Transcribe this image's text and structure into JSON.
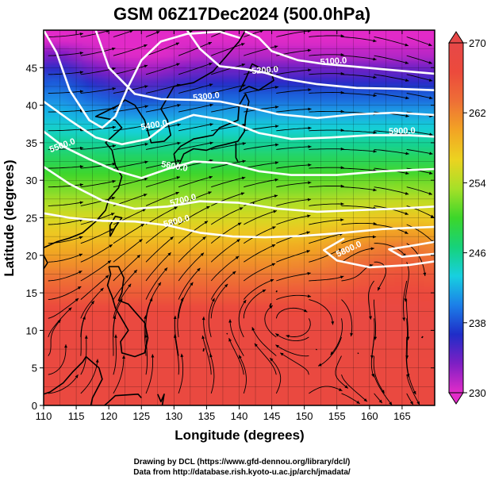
{
  "title": "GSM 06Z17Dec2024 (500.0hPa)",
  "x_axis": {
    "label": "Longitude (degrees)",
    "range": [
      110,
      170
    ],
    "ticks": [
      110,
      115,
      120,
      125,
      130,
      135,
      140,
      145,
      150,
      155,
      160,
      165
    ]
  },
  "y_axis": {
    "label": "Latitude  (degrees)",
    "range": [
      0,
      50
    ],
    "ticks": [
      0,
      5,
      10,
      15,
      20,
      25,
      30,
      35,
      40,
      45
    ]
  },
  "colorbar": {
    "range": [
      230,
      270
    ],
    "ticks": [
      230,
      238,
      246,
      254,
      262,
      270
    ],
    "colors": [
      "#e22cc8",
      "#7e1fc4",
      "#1f2dc8",
      "#1c7fe8",
      "#17d0e0",
      "#16d27a",
      "#3cd62a",
      "#a6e028",
      "#ecd320",
      "#f2a424",
      "#ee6f36",
      "#ec4a3c",
      "#e64848"
    ]
  },
  "contour_labels": [
    "5100.0",
    "5200.0",
    "5300.0",
    "5400.0",
    "5500.0",
    "5600.0",
    "5700.0",
    "5800.0",
    "5800.0",
    "5900.0"
  ],
  "credits": {
    "line1": "Drawing by DCL (https://www.gfd-dennou.org/library/dcl/)",
    "line2": "Data from http://database.rish.kyoto-u.ac.jp/arch/jmadata/"
  }
}
